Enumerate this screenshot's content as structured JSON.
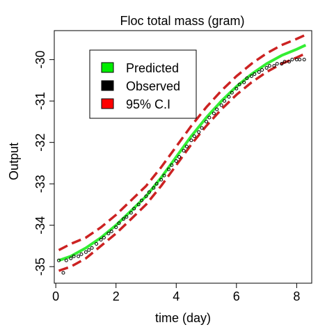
{
  "chart_data": {
    "type": "line",
    "title": "Floc total mass (gram)",
    "xlabel": "time (day)",
    "ylabel": "Output",
    "xlim": [
      -0.05,
      8.5
    ],
    "ylim": [
      -35.4,
      -29.3
    ],
    "xticks": [
      0,
      2,
      4,
      6,
      8
    ],
    "xtick_labels": [
      "0",
      "2",
      "4",
      "6",
      "8"
    ],
    "yticks": [
      -35,
      -34,
      -33,
      -32,
      -31,
      -30
    ],
    "ytick_labels": [
      "-35",
      "-34",
      "-33",
      "-32",
      "-31",
      "-30"
    ],
    "legend_position": "top-left",
    "legend": [
      {
        "label": "Predicted",
        "color": "#00ee00"
      },
      {
        "label": "Observed",
        "color": "#000000"
      },
      {
        "label": "95% C.I",
        "color": "#ff0000"
      }
    ],
    "series": [
      {
        "name": "Predicted",
        "style": "solid",
        "color": "#33ee33",
        "x": [
          0.1,
          0.5,
          1.0,
          1.5,
          2.0,
          2.5,
          3.0,
          3.5,
          4.0,
          4.5,
          5.0,
          5.5,
          6.0,
          6.5,
          7.0,
          7.5,
          8.0,
          8.3
        ],
        "y": [
          -34.85,
          -34.75,
          -34.55,
          -34.3,
          -34.0,
          -33.65,
          -33.3,
          -32.85,
          -32.35,
          -31.85,
          -31.4,
          -31.0,
          -30.65,
          -30.35,
          -30.1,
          -29.9,
          -29.75,
          -29.65
        ]
      },
      {
        "name": "Upper 95% C.I",
        "style": "dashed",
        "color": "#cc2222",
        "x": [
          0.1,
          0.5,
          1.0,
          1.5,
          2.0,
          2.5,
          3.0,
          3.5,
          4.0,
          4.5,
          5.0,
          5.5,
          6.0,
          6.5,
          7.0,
          7.5,
          8.0,
          8.3
        ],
        "y": [
          -34.6,
          -34.45,
          -34.3,
          -34.05,
          -33.75,
          -33.4,
          -33.05,
          -32.6,
          -32.1,
          -31.6,
          -31.15,
          -30.75,
          -30.4,
          -30.1,
          -29.85,
          -29.65,
          -29.5,
          -29.4
        ]
      },
      {
        "name": "Lower 95% C.I",
        "style": "dashed",
        "color": "#cc2222",
        "x": [
          0.1,
          0.5,
          1.0,
          1.5,
          2.0,
          2.5,
          3.0,
          3.5,
          4.0,
          4.5,
          5.0,
          5.5,
          6.0,
          6.5,
          7.0,
          7.5,
          8.0,
          8.3
        ],
        "y": [
          -35.1,
          -35.0,
          -34.8,
          -34.5,
          -34.2,
          -33.85,
          -33.5,
          -33.05,
          -32.55,
          -32.05,
          -31.6,
          -31.2,
          -30.85,
          -30.55,
          -30.3,
          -30.1,
          -29.95,
          -29.85
        ]
      },
      {
        "name": "Observed",
        "style": "points",
        "color": "#000000",
        "x": [
          0.1,
          0.25,
          0.35,
          0.5,
          0.6,
          0.75,
          0.85,
          1.0,
          1.1,
          1.2,
          1.35,
          1.5,
          1.6,
          1.75,
          1.85,
          2.0,
          2.1,
          2.25,
          2.35,
          2.5,
          2.6,
          2.75,
          2.85,
          3.0,
          3.1,
          3.25,
          3.35,
          3.5,
          3.6,
          3.75,
          3.85,
          4.0,
          4.1,
          4.25,
          4.35,
          4.5,
          4.6,
          4.75,
          4.85,
          5.0,
          5.1,
          5.25,
          5.35,
          5.5,
          5.6,
          5.75,
          5.85,
          6.0,
          6.1,
          6.25,
          6.35,
          6.5,
          6.6,
          6.75,
          6.85,
          7.0,
          7.1,
          7.25,
          7.35,
          7.5,
          7.6,
          7.75,
          7.85,
          8.0,
          8.1,
          8.25
        ],
        "y": [
          -34.85,
          -35.15,
          -34.85,
          -34.8,
          -34.75,
          -34.75,
          -34.7,
          -34.65,
          -34.6,
          -34.55,
          -34.45,
          -34.35,
          -34.3,
          -34.2,
          -34.15,
          -34.05,
          -33.95,
          -33.85,
          -33.8,
          -33.7,
          -33.6,
          -33.5,
          -33.4,
          -33.3,
          -33.2,
          -33.1,
          -33.0,
          -32.9,
          -32.8,
          -32.65,
          -32.55,
          -32.45,
          -32.35,
          -32.2,
          -32.1,
          -31.95,
          -31.85,
          -31.75,
          -31.65,
          -31.5,
          -31.4,
          -31.3,
          -31.2,
          -31.1,
          -31.0,
          -30.9,
          -30.8,
          -30.7,
          -30.6,
          -30.55,
          -30.45,
          -30.4,
          -30.35,
          -30.3,
          -30.25,
          -30.2,
          -30.15,
          -30.15,
          -30.1,
          -30.1,
          -30.05,
          -30.05,
          -30.0,
          -30.0,
          -30.0,
          -30.0
        ]
      }
    ]
  }
}
